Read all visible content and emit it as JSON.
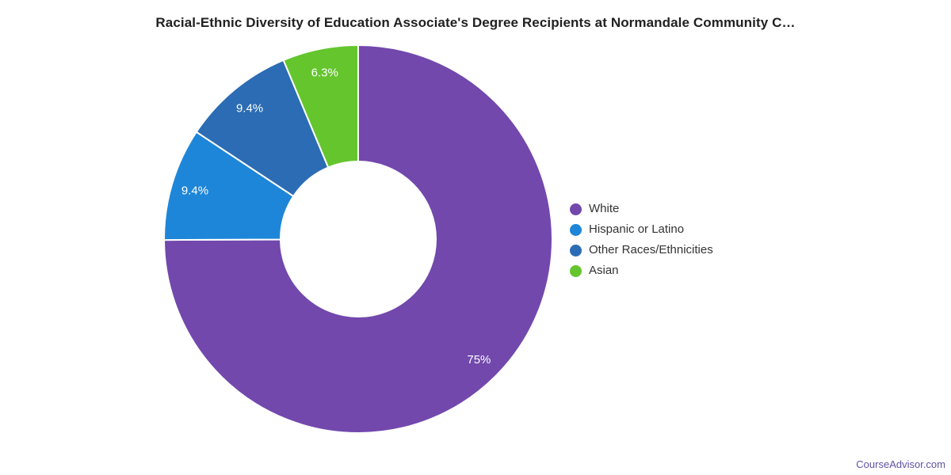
{
  "page": {
    "background": "#ffffff"
  },
  "chart_data": {
    "type": "pie",
    "subtype": "donut",
    "title": "Racial-Ethnic Diversity of Education Associate's Degree Recipients at Normandale Community C…",
    "legend_position": "right",
    "start_angle_deg": 0,
    "direction": "clockwise",
    "inner_radius_ratio": 0.4,
    "categories": [
      "White",
      "Hispanic or Latino",
      "Other Races/Ethnicities",
      "Asian"
    ],
    "values": [
      75,
      9.4,
      9.4,
      6.3
    ],
    "slices": [
      {
        "name": "White",
        "value": 75,
        "label": "75%",
        "color": "#7248ad"
      },
      {
        "name": "Hispanic or Latino",
        "value": 9.4,
        "label": "9.4%",
        "color": "#1e86d8"
      },
      {
        "name": "Other Races/Ethnicities",
        "value": 9.4,
        "label": "9.4%",
        "color": "#2b6cb4"
      },
      {
        "name": "Asian",
        "value": 6.3,
        "label": "6.3%",
        "color": "#64c52d"
      }
    ],
    "slice_label_color": "#ffffff",
    "slice_border_color": "#ffffff"
  },
  "footer": {
    "watermark": "CourseAdvisor.com",
    "watermark_color": "#5f52a6"
  }
}
